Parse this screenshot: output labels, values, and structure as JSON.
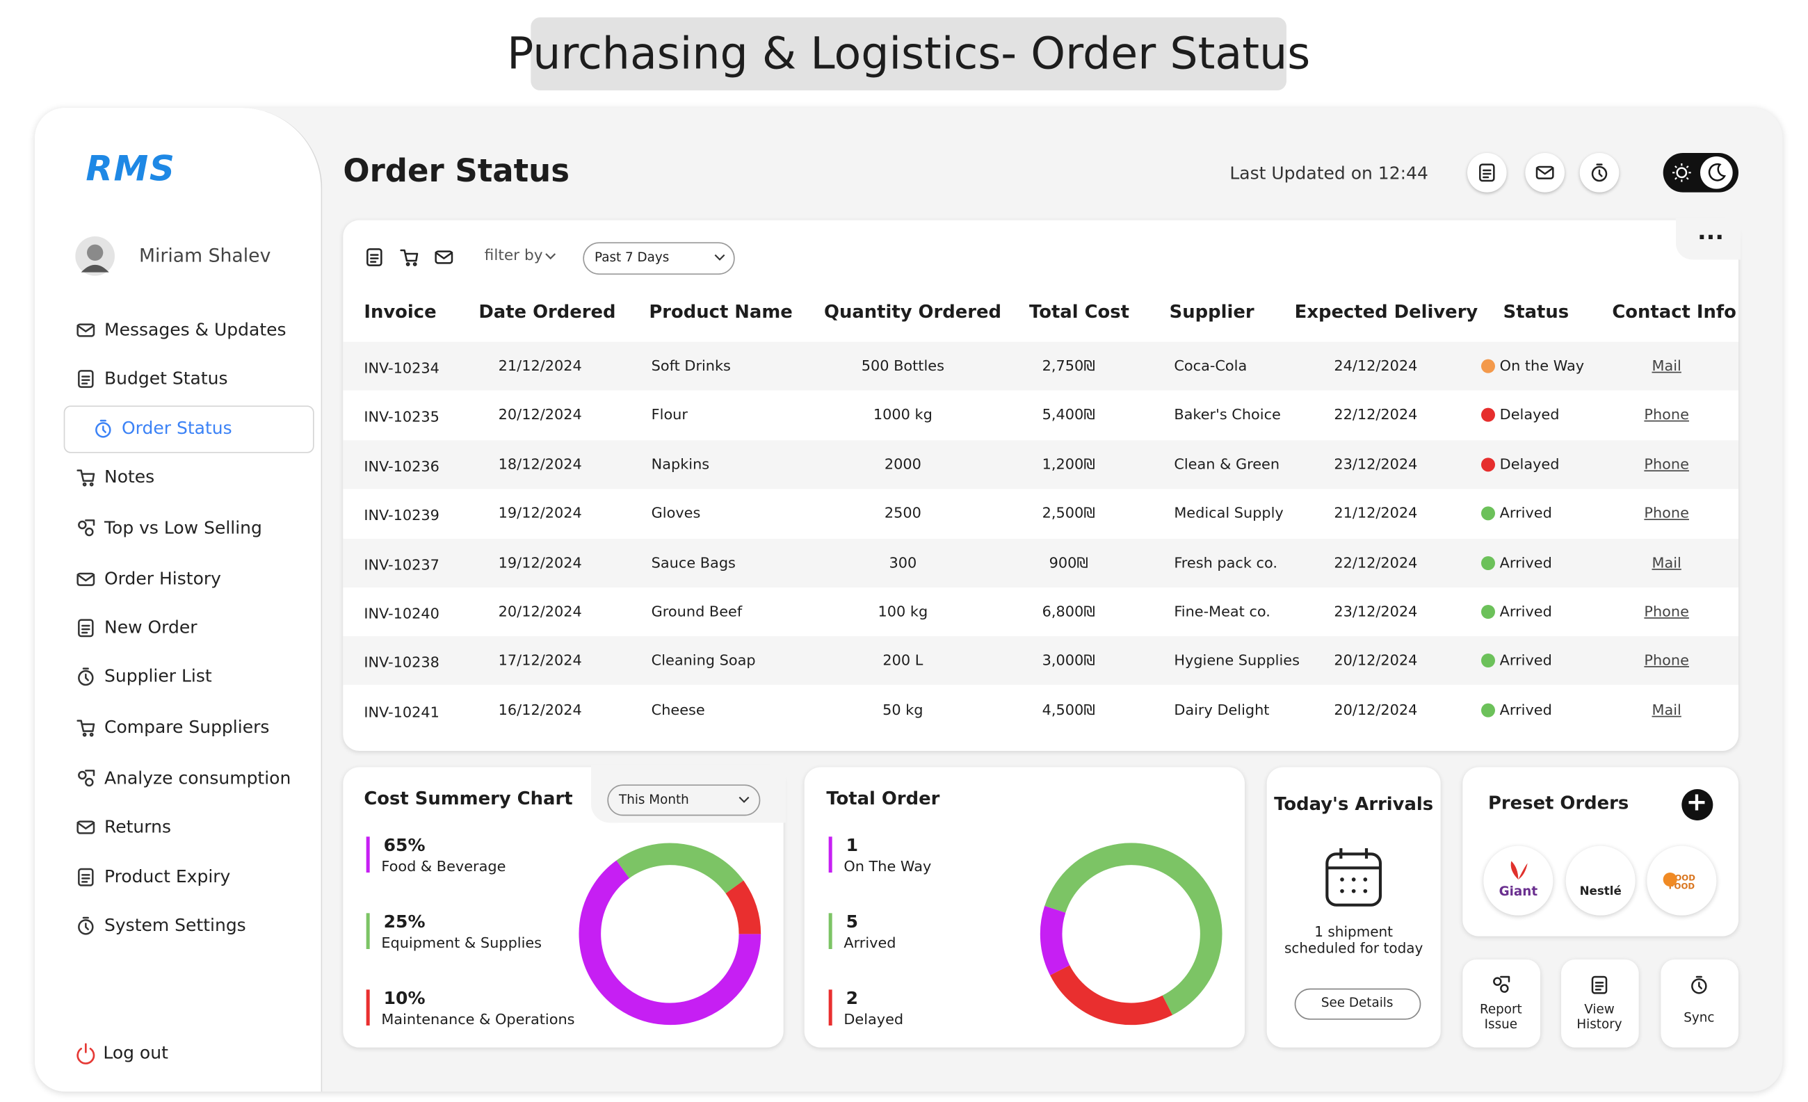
{
  "banner": "Purchasing & Logistics- Order Status",
  "sidebar": {
    "logo": "RMS",
    "user": "Miriam Shalev",
    "menu": [
      "Messages & Updates",
      "Budget Status",
      "Order Status",
      "Notes",
      "Top vs Low Selling",
      "Order History",
      "New Order",
      "Supplier List",
      "Compare Suppliers",
      "Analyze consumption",
      "Returns",
      "Product Expiry",
      "System Settings"
    ],
    "logout": "Log out"
  },
  "header": {
    "title": "Order Status",
    "last_updated": "Last Updated on 12:44"
  },
  "table": {
    "filter_label": "filter by",
    "range": "Past 7 Days",
    "columns": [
      "Invoice",
      "Date Ordered",
      "Product Name",
      "Quantity Ordered",
      "Total Cost",
      "Supplier",
      "Expected Delivery",
      "Status",
      "Contact Info"
    ],
    "rows": [
      [
        "INV-10234",
        "21/12/2024",
        "Soft Drinks",
        "500 Bottles",
        "2,750₪",
        "Coca-Cola",
        "24/12/2024",
        "On the Way",
        "Mail"
      ],
      [
        "INV-10235",
        "20/12/2024",
        "Flour",
        "1000 kg",
        "5,400₪",
        "Baker's Choice",
        "22/12/2024",
        "Delayed",
        "Phone"
      ],
      [
        "INV-10236",
        "18/12/2024",
        "Napkins",
        "2000",
        "1,200₪",
        "Clean & Green",
        "23/12/2024",
        "Delayed",
        "Phone"
      ],
      [
        "INV-10239",
        "19/12/2024",
        "Gloves",
        "2500",
        "2,500₪",
        "Medical Supply",
        "21/12/2024",
        "Arrived",
        "Phone"
      ],
      [
        "INV-10237",
        "19/12/2024",
        "Sauce Bags",
        "300",
        "900₪",
        "Fresh pack co.",
        "22/12/2024",
        "Arrived",
        "Mail"
      ],
      [
        "INV-10240",
        "20/12/2024",
        "Ground Beef",
        "100 kg",
        "6,800₪",
        "Fine-Meat co.",
        "23/12/2024",
        "Arrived",
        "Phone"
      ],
      [
        "INV-10238",
        "17/12/2024",
        "Cleaning Soap",
        "200 L",
        "3,000₪",
        "Hygiene Supplies",
        "20/12/2024",
        "Arrived",
        "Phone"
      ],
      [
        "INV-10241",
        "16/12/2024",
        "Cheese",
        "50 kg",
        "4,500₪",
        "Dairy Delight",
        "20/12/2024",
        "Arrived",
        "Mail"
      ]
    ],
    "status_colors": {
      "On the Way": "#f3994b",
      "Delayed": "#e62e2d",
      "Arrived": "#6cc15a"
    }
  },
  "chart_data": [
    {
      "type": "donut",
      "title": "Cost Summery Chart",
      "control": "This Month",
      "categories": [
        "Food & Beverage",
        "Equipment & Supplies",
        "Maintenance & Operations"
      ],
      "values": [
        65,
        25,
        10
      ],
      "value_labels": [
        "65%",
        "25%",
        "10%"
      ],
      "colors": [
        "#c61ff3",
        "#7cc465",
        "#e92f2f"
      ]
    },
    {
      "type": "donut",
      "title": "Total Order",
      "categories": [
        "On The Way",
        "Arrived",
        "Delayed"
      ],
      "values": [
        1,
        5,
        2
      ],
      "colors": [
        "#c61ff3",
        "#7cc465",
        "#e92f2f"
      ]
    }
  ],
  "arrivals": {
    "title": "Today's Arrivals",
    "text": "1 shipment scheduled for today",
    "button": "See Details"
  },
  "preset": {
    "title": "Preset Orders",
    "suppliers": [
      "Giant",
      "Nestlé",
      "GOOD FOOD"
    ]
  },
  "actions": [
    "Report Issue",
    "View History",
    "Sync"
  ]
}
